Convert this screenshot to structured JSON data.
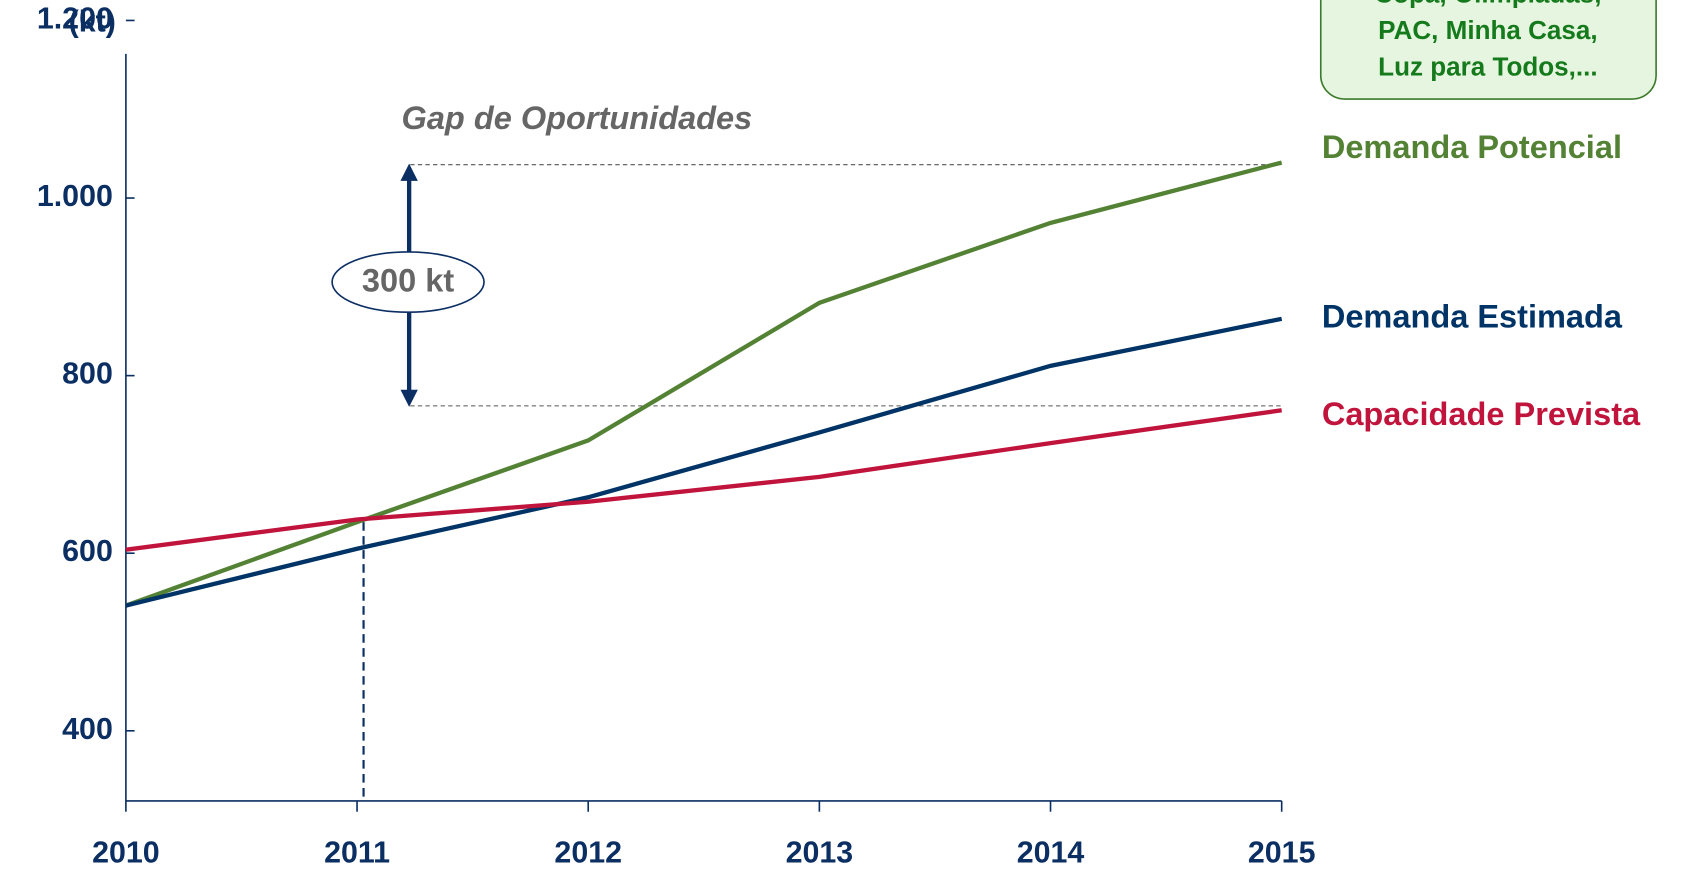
{
  "chart_data": {
    "type": "line",
    "y_label": "(kt)",
    "x": [
      2010,
      2011,
      2012,
      2013,
      2014,
      2015
    ],
    "xlim": [
      2010,
      2015
    ],
    "xticks": [
      2010,
      2011,
      2012,
      2013,
      2014,
      2015
    ],
    "ylim": [
      321,
      1200
    ],
    "yticks": [
      {
        "value": 400,
        "label": "400"
      },
      {
        "value": 600,
        "label": "600"
      },
      {
        "value": 800,
        "label": "800"
      },
      {
        "value": 1000,
        "label": "1.000"
      },
      {
        "value": 1200,
        "label": "1.200"
      }
    ],
    "series": [
      {
        "name": "Demanda Potencial",
        "color": "#548235",
        "values": [
          541,
          635,
          727,
          882,
          972,
          1040
        ]
      },
      {
        "name": "Demanda Estimada",
        "color": "#003366",
        "values": [
          541,
          605,
          663,
          736,
          811,
          864
        ]
      },
      {
        "name": "Capacidade Prevista",
        "color": "#c0143c",
        "values": [
          604,
          638,
          658,
          686,
          724,
          761
        ]
      }
    ],
    "annotations": {
      "gap": "Gap de Oportunidades",
      "gap_size": "300 kt",
      "drivers": [
        "Copa, Olimpíadas,",
        "PAC, Minha Casa,",
        "Luz para Todos,..."
      ]
    }
  }
}
